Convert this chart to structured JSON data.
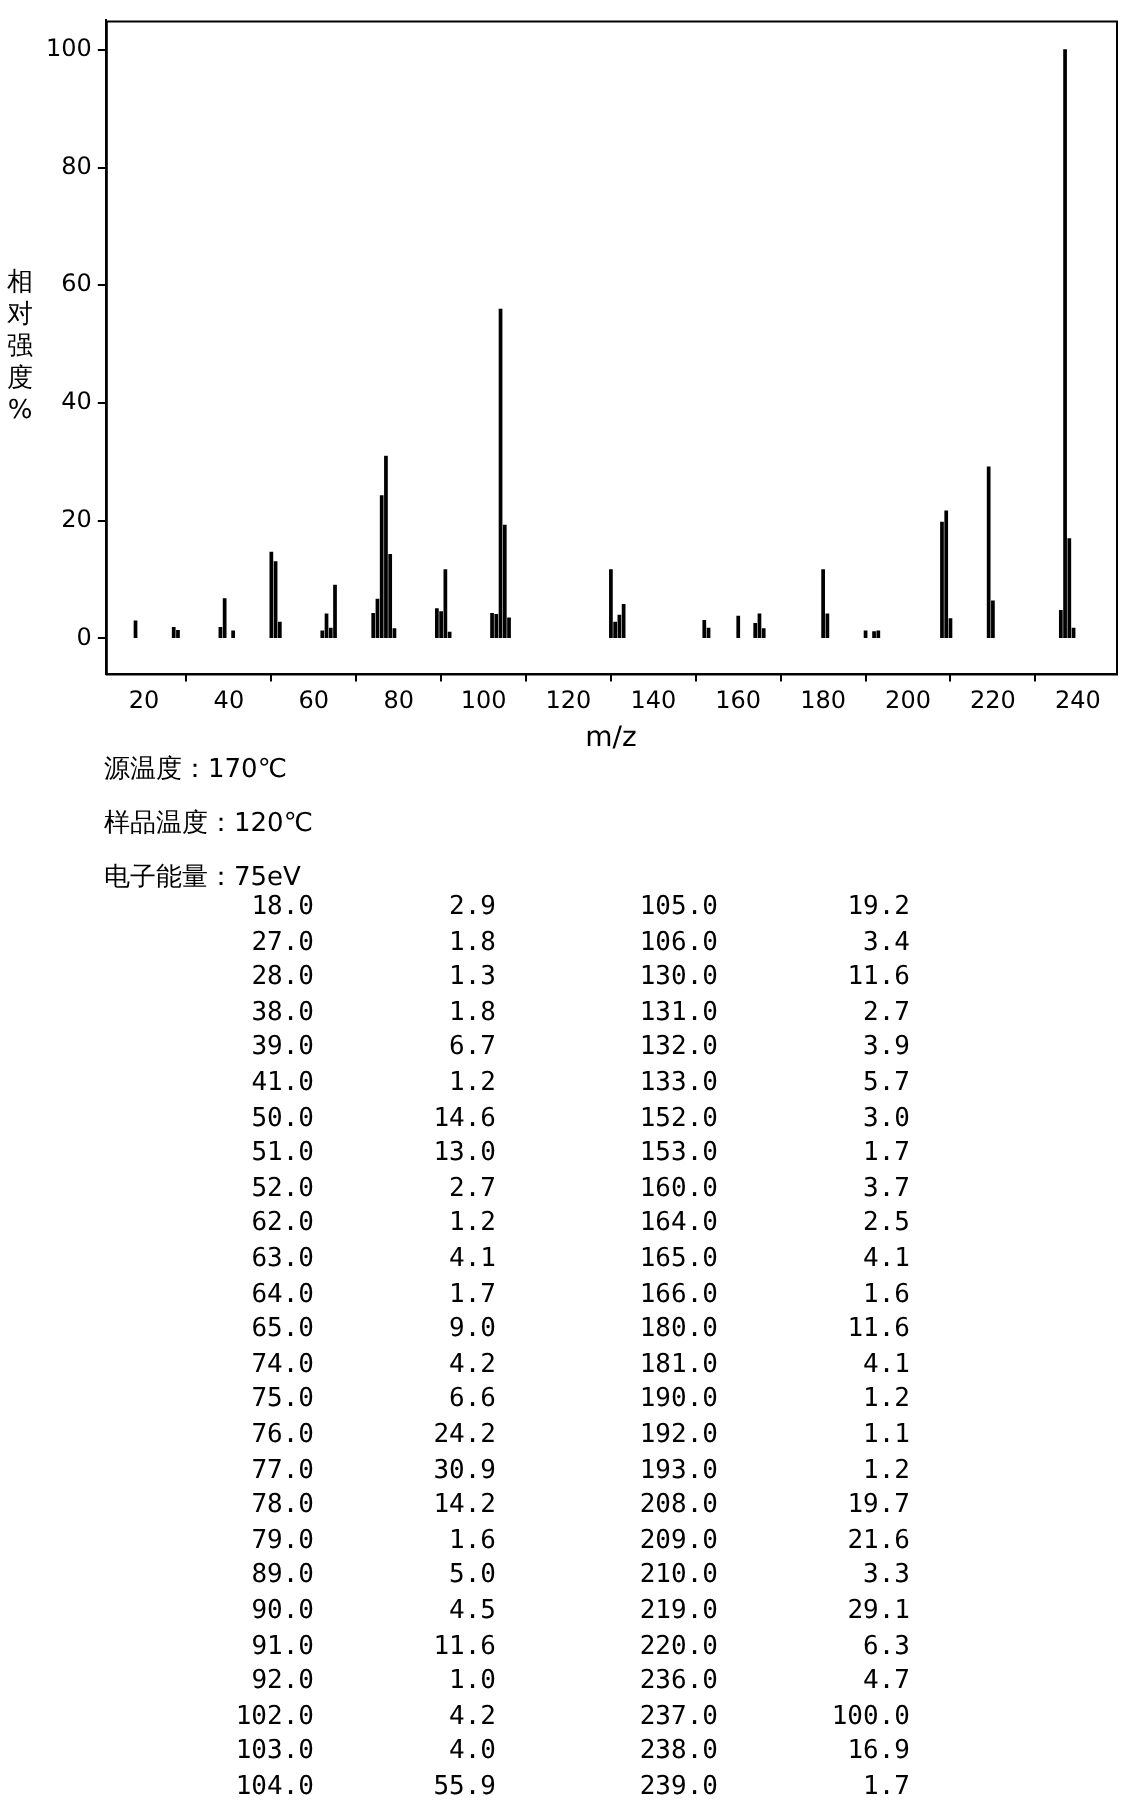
{
  "chart_data": [
    {
      "type": "bar",
      "xlabel": "m/z",
      "ylabel": "相对强度%",
      "x": [
        18,
        27,
        28,
        38,
        39,
        41,
        50,
        51,
        52,
        62,
        63,
        64,
        65,
        74,
        75,
        76,
        77,
        78,
        79,
        89,
        90,
        91,
        92,
        102,
        103,
        104,
        105,
        106,
        130,
        131,
        132,
        133,
        152,
        153,
        160,
        164,
        165,
        166,
        180,
        181,
        190,
        192,
        193,
        208,
        209,
        210,
        219,
        220,
        236,
        237,
        238,
        239
      ],
      "series": [
        {
          "color": "#000000",
          "values": [
            2.9,
            1.8,
            1.3,
            1.8,
            6.7,
            1.2,
            14.6,
            13.0,
            2.7,
            1.2,
            4.1,
            1.7,
            9.0,
            4.2,
            6.6,
            24.2,
            30.9,
            14.2,
            1.6,
            5.0,
            4.5,
            11.6,
            1.0,
            4.2,
            4.0,
            55.9,
            19.2,
            3.4,
            11.6,
            2.7,
            3.9,
            5.7,
            3.0,
            1.7,
            3.7,
            2.5,
            4.1,
            1.6,
            11.6,
            4.1,
            1.2,
            1.1,
            1.2,
            19.7,
            21.6,
            3.3,
            29.1,
            6.3,
            4.7,
            100.0,
            16.9,
            1.7
          ]
        }
      ],
      "xlim": [
        11,
        249
      ],
      "xticks": [
        20,
        40,
        60,
        80,
        100,
        120,
        140,
        160,
        180,
        200,
        220,
        240
      ],
      "ylim": [
        -6,
        105
      ],
      "yticks": [
        0,
        20,
        40,
        60,
        80,
        100
      ],
      "grid": false,
      "legend": false,
      "annotations": [
        "源温度：170℃",
        "样品温度：120℃",
        "电子能量：75eV"
      ]
    },
    {
      "type": "other",
      "cell_labels": [
        [
          "18.0",
          "2.9",
          "105.0",
          "19.2"
        ],
        [
          "27.0",
          "1.8",
          "106.0",
          "3.4"
        ],
        [
          "28.0",
          "1.3",
          "130.0",
          "11.6"
        ],
        [
          "38.0",
          "1.8",
          "131.0",
          "2.7"
        ],
        [
          "39.0",
          "6.7",
          "132.0",
          "3.9"
        ],
        [
          "41.0",
          "1.2",
          "133.0",
          "5.7"
        ],
        [
          "50.0",
          "14.6",
          "152.0",
          "3.0"
        ],
        [
          "51.0",
          "13.0",
          "153.0",
          "1.7"
        ],
        [
          "52.0",
          "2.7",
          "160.0",
          "3.7"
        ],
        [
          "62.0",
          "1.2",
          "164.0",
          "2.5"
        ],
        [
          "63.0",
          "4.1",
          "165.0",
          "4.1"
        ],
        [
          "64.0",
          "1.7",
          "166.0",
          "1.6"
        ],
        [
          "65.0",
          "9.0",
          "180.0",
          "11.6"
        ],
        [
          "74.0",
          "4.2",
          "181.0",
          "4.1"
        ],
        [
          "75.0",
          "6.6",
          "190.0",
          "1.2"
        ],
        [
          "76.0",
          "24.2",
          "192.0",
          "1.1"
        ],
        [
          "77.0",
          "30.9",
          "193.0",
          "1.2"
        ],
        [
          "78.0",
          "14.2",
          "208.0",
          "19.7"
        ],
        [
          "79.0",
          "1.6",
          "209.0",
          "21.6"
        ],
        [
          "89.0",
          "5.0",
          "210.0",
          "3.3"
        ],
        [
          "90.0",
          "4.5",
          "219.0",
          "29.1"
        ],
        [
          "91.0",
          "11.6",
          "220.0",
          "6.3"
        ],
        [
          "92.0",
          "1.0",
          "236.0",
          "4.7"
        ],
        [
          "102.0",
          "4.2",
          "237.0",
          "100.0"
        ],
        [
          "103.0",
          "4.0",
          "238.0",
          "16.9"
        ],
        [
          "104.0",
          "55.9",
          "239.0",
          "1.7"
        ]
      ]
    }
  ]
}
